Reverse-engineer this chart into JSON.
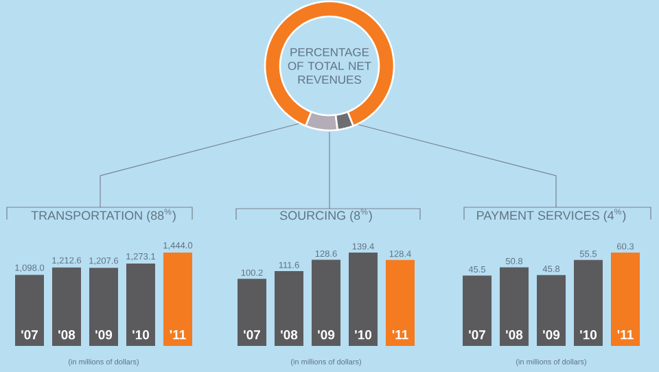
{
  "chart_data": [
    {
      "type": "donut",
      "title": "PERCENTAGE OF TOTAL NET REVENUES",
      "categories": [
        null,
        null,
        null
      ],
      "values": [
        88,
        8,
        4
      ],
      "colors": [
        "#f47b20",
        "#b3adb8",
        "#6d6e71"
      ]
    },
    {
      "type": "bar",
      "title": "TRANSPORTATION (88$^{%}$)",
      "categories": [
        "'07",
        "'08",
        "'09",
        "'10",
        "'11"
      ],
      "values": [
        1098.0,
        1212.6,
        1207.6,
        1273.1,
        1444.0
      ],
      "value_labels": [
        "1,098.0",
        "1,212.6",
        "1,207.6",
        "1,273.1",
        "1,444.0"
      ],
      "colors": [
        "#5b5b5d",
        "#5b5b5d",
        "#5b5b5d",
        "#5b5b5d",
        "#f47b20"
      ],
      "annotations": [
        "(in millions of dollars)"
      ]
    },
    {
      "type": "bar",
      "title": "SOURCING (8$^{%}$)",
      "categories": [
        "'07",
        "'08",
        "'09",
        "'10",
        "'11"
      ],
      "values": [
        100.2,
        111.6,
        128.6,
        139.4,
        128.4
      ],
      "value_labels": [
        "100.2",
        "111.6",
        "128.6",
        "139.4",
        "128.4"
      ],
      "colors": [
        "#5b5b5d",
        "#5b5b5d",
        "#5b5b5d",
        "#5b5b5d",
        "#f47b20"
      ],
      "annotations": [
        "(in millions of dollars)"
      ]
    },
    {
      "type": "bar",
      "title": "PAYMENT SERVICES (4$^{%}$)",
      "categories": [
        "'07",
        "'08",
        "'09",
        "'10",
        "'11"
      ],
      "values": [
        45.5,
        50.8,
        45.8,
        55.5,
        60.3
      ],
      "value_labels": [
        "45.5",
        "50.8",
        "45.8",
        "55.5",
        "60.3"
      ],
      "colors": [
        "#5b5b5d",
        "#5b5b5d",
        "#5b5b5d",
        "#5b5b5d",
        "#f47b20"
      ],
      "annotations": [
        "(in millions of dollars)"
      ]
    }
  ]
}
